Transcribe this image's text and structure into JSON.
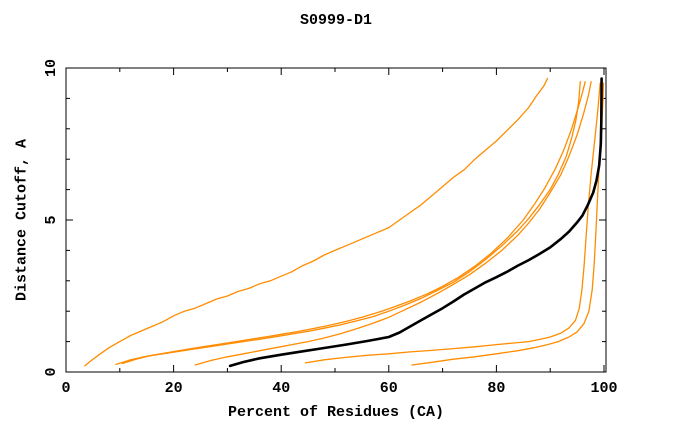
{
  "chart_data": {
    "type": "line",
    "title": "S0999-D1",
    "xlabel": "Percent of Residues (CA)",
    "ylabel": "Distance Cutoff, A",
    "xlim": [
      0,
      100
    ],
    "ylim": [
      0,
      10
    ],
    "grid": false,
    "legend_position": "none",
    "axis_color": "#000000",
    "model_color": "#ff8c00",
    "reference_color": "#000000",
    "x_major_ticks": [
      0,
      20,
      40,
      60,
      80,
      100
    ],
    "x_minor_ticks": [
      10,
      30,
      50,
      70,
      90
    ],
    "x_tick_labels": [
      "0",
      "20",
      "40",
      "60",
      "80",
      "100"
    ],
    "y_major_ticks": [
      0,
      5,
      10
    ],
    "y_minor_ticks": [
      1,
      2,
      3,
      4,
      6,
      7,
      8,
      9
    ],
    "y_tick_labels": [
      "0",
      "5",
      "10"
    ],
    "series": [
      {
        "name": "model-1",
        "color": "#ff8c00",
        "width": 1.3,
        "points": [
          [
            3.5,
            0.2
          ],
          [
            4.5,
            0.35
          ],
          [
            6,
            0.55
          ],
          [
            8,
            0.8
          ],
          [
            10,
            1.0
          ],
          [
            12,
            1.2
          ],
          [
            14,
            1.35
          ],
          [
            16,
            1.5
          ],
          [
            18,
            1.65
          ],
          [
            20,
            1.85
          ],
          [
            22,
            2.0
          ],
          [
            24,
            2.1
          ],
          [
            26,
            2.25
          ],
          [
            28,
            2.4
          ],
          [
            30,
            2.5
          ],
          [
            32,
            2.65
          ],
          [
            34,
            2.75
          ],
          [
            36,
            2.9
          ],
          [
            38,
            3.0
          ],
          [
            40,
            3.15
          ],
          [
            42,
            3.3
          ],
          [
            44,
            3.5
          ],
          [
            46,
            3.65
          ],
          [
            48,
            3.85
          ],
          [
            50,
            4.0
          ],
          [
            52,
            4.15
          ],
          [
            54,
            4.3
          ],
          [
            56,
            4.45
          ],
          [
            58,
            4.6
          ],
          [
            60,
            4.75
          ],
          [
            62,
            5.0
          ],
          [
            64,
            5.25
          ],
          [
            66,
            5.5
          ],
          [
            68,
            5.8
          ],
          [
            70,
            6.1
          ],
          [
            72,
            6.4
          ],
          [
            74,
            6.65
          ],
          [
            76,
            7.0
          ],
          [
            78,
            7.3
          ],
          [
            80,
            7.6
          ],
          [
            82,
            7.95
          ],
          [
            84,
            8.3
          ],
          [
            86,
            8.7
          ],
          [
            87.5,
            9.1
          ],
          [
            88.8,
            9.4
          ],
          [
            89.5,
            9.65
          ]
        ]
      },
      {
        "name": "model-2",
        "color": "#ff8c00",
        "width": 1.3,
        "points": [
          [
            9.3,
            0.25
          ],
          [
            12,
            0.4
          ],
          [
            15,
            0.52
          ],
          [
            18,
            0.6
          ],
          [
            21,
            0.68
          ],
          [
            24,
            0.76
          ],
          [
            27,
            0.84
          ],
          [
            30,
            0.92
          ],
          [
            33,
            1.0
          ],
          [
            36,
            1.08
          ],
          [
            39,
            1.16
          ],
          [
            42,
            1.25
          ],
          [
            45,
            1.34
          ],
          [
            48,
            1.44
          ],
          [
            51,
            1.55
          ],
          [
            54,
            1.68
          ],
          [
            57,
            1.82
          ],
          [
            60,
            2.0
          ],
          [
            63,
            2.2
          ],
          [
            66,
            2.42
          ],
          [
            69,
            2.68
          ],
          [
            72,
            2.95
          ],
          [
            75,
            3.3
          ],
          [
            78,
            3.7
          ],
          [
            81,
            4.15
          ],
          [
            84,
            4.65
          ],
          [
            86,
            5.05
          ],
          [
            88,
            5.5
          ],
          [
            90,
            6.0
          ],
          [
            91.5,
            6.5
          ],
          [
            93,
            7.1
          ],
          [
            94,
            7.7
          ],
          [
            94.8,
            8.3
          ],
          [
            95.3,
            8.9
          ],
          [
            95.6,
            9.55
          ]
        ]
      },
      {
        "name": "model-3",
        "color": "#ff8c00",
        "width": 1.3,
        "points": [
          [
            10.5,
            0.28
          ],
          [
            13,
            0.42
          ],
          [
            16,
            0.55
          ],
          [
            19,
            0.64
          ],
          [
            22,
            0.73
          ],
          [
            25,
            0.82
          ],
          [
            28,
            0.9
          ],
          [
            31,
            0.98
          ],
          [
            34,
            1.07
          ],
          [
            37,
            1.15
          ],
          [
            40,
            1.24
          ],
          [
            43,
            1.33
          ],
          [
            46,
            1.43
          ],
          [
            49,
            1.54
          ],
          [
            52,
            1.66
          ],
          [
            55,
            1.8
          ],
          [
            58,
            1.96
          ],
          [
            61,
            2.14
          ],
          [
            64,
            2.34
          ],
          [
            67,
            2.56
          ],
          [
            70,
            2.82
          ],
          [
            73,
            3.12
          ],
          [
            76,
            3.48
          ],
          [
            79,
            3.9
          ],
          [
            82,
            4.4
          ],
          [
            85,
            5.0
          ],
          [
            87,
            5.5
          ],
          [
            89,
            6.05
          ],
          [
            91,
            6.7
          ],
          [
            92.5,
            7.3
          ],
          [
            94,
            8.0
          ],
          [
            95.2,
            8.7
          ],
          [
            96,
            9.2
          ],
          [
            96.5,
            9.55
          ]
        ]
      },
      {
        "name": "model-4",
        "color": "#ff8c00",
        "width": 1.3,
        "points": [
          [
            24,
            0.23
          ],
          [
            27,
            0.38
          ],
          [
            30,
            0.5
          ],
          [
            33,
            0.6
          ],
          [
            36,
            0.7
          ],
          [
            39,
            0.8
          ],
          [
            42,
            0.9
          ],
          [
            45,
            1.0
          ],
          [
            48,
            1.12
          ],
          [
            51,
            1.26
          ],
          [
            54,
            1.42
          ],
          [
            57,
            1.6
          ],
          [
            60,
            1.8
          ],
          [
            63,
            2.05
          ],
          [
            66,
            2.3
          ],
          [
            69,
            2.58
          ],
          [
            72,
            2.88
          ],
          [
            75,
            3.2
          ],
          [
            78,
            3.58
          ],
          [
            81,
            4.0
          ],
          [
            84,
            4.5
          ],
          [
            86,
            4.9
          ],
          [
            88,
            5.35
          ],
          [
            90,
            5.9
          ],
          [
            92,
            6.5
          ],
          [
            93.5,
            7.1
          ],
          [
            95,
            7.8
          ],
          [
            96.2,
            8.5
          ],
          [
            97.1,
            9.1
          ],
          [
            97.6,
            9.55
          ]
        ]
      },
      {
        "name": "model-5",
        "color": "#ff8c00",
        "width": 1.3,
        "points": [
          [
            44.5,
            0.3
          ],
          [
            48,
            0.4
          ],
          [
            52,
            0.48
          ],
          [
            56,
            0.55
          ],
          [
            60,
            0.6
          ],
          [
            64,
            0.66
          ],
          [
            68,
            0.71
          ],
          [
            72,
            0.77
          ],
          [
            76,
            0.83
          ],
          [
            80,
            0.9
          ],
          [
            83,
            0.95
          ],
          [
            86,
            1.0
          ],
          [
            88,
            1.07
          ],
          [
            90,
            1.15
          ],
          [
            92,
            1.28
          ],
          [
            93.5,
            1.45
          ],
          [
            94.7,
            1.7
          ],
          [
            95.4,
            2.1
          ],
          [
            95.9,
            2.7
          ],
          [
            96.3,
            3.5
          ],
          [
            96.7,
            4.5
          ],
          [
            97.1,
            5.5
          ],
          [
            97.6,
            6.5
          ],
          [
            98.2,
            7.5
          ],
          [
            98.8,
            8.5
          ],
          [
            99.3,
            9.5
          ]
        ]
      },
      {
        "name": "model-6",
        "color": "#ff8c00",
        "width": 1.3,
        "points": [
          [
            64.3,
            0.23
          ],
          [
            68,
            0.32
          ],
          [
            72,
            0.42
          ],
          [
            76,
            0.5
          ],
          [
            80,
            0.6
          ],
          [
            84,
            0.7
          ],
          [
            87,
            0.8
          ],
          [
            89.5,
            0.9
          ],
          [
            91.5,
            1.0
          ],
          [
            93.5,
            1.15
          ],
          [
            95,
            1.32
          ],
          [
            96.3,
            1.6
          ],
          [
            97.2,
            2.0
          ],
          [
            97.8,
            2.7
          ],
          [
            98.2,
            3.6
          ],
          [
            98.5,
            4.6
          ],
          [
            98.8,
            5.7
          ],
          [
            99.1,
            6.8
          ],
          [
            99.5,
            7.9
          ],
          [
            99.8,
            8.9
          ],
          [
            99.9,
            9.5
          ]
        ]
      },
      {
        "name": "reference",
        "color": "#000000",
        "width": 2.6,
        "points": [
          [
            30.5,
            0.2
          ],
          [
            33,
            0.33
          ],
          [
            36,
            0.45
          ],
          [
            40,
            0.57
          ],
          [
            44,
            0.68
          ],
          [
            48,
            0.79
          ],
          [
            52,
            0.9
          ],
          [
            56,
            1.02
          ],
          [
            60,
            1.15
          ],
          [
            62,
            1.3
          ],
          [
            64,
            1.5
          ],
          [
            66,
            1.7
          ],
          [
            68,
            1.9
          ],
          [
            70,
            2.1
          ],
          [
            72,
            2.32
          ],
          [
            74,
            2.55
          ],
          [
            76,
            2.75
          ],
          [
            78,
            2.95
          ],
          [
            80,
            3.12
          ],
          [
            82,
            3.3
          ],
          [
            84,
            3.5
          ],
          [
            86,
            3.68
          ],
          [
            88,
            3.88
          ],
          [
            90,
            4.1
          ],
          [
            92,
            4.38
          ],
          [
            93.5,
            4.62
          ],
          [
            95,
            4.92
          ],
          [
            96,
            5.15
          ],
          [
            97,
            5.5
          ],
          [
            98,
            5.9
          ],
          [
            98.6,
            6.3
          ],
          [
            99.1,
            6.8
          ],
          [
            99.4,
            7.5
          ],
          [
            99.5,
            8.2
          ],
          [
            99.55,
            9.65
          ]
        ]
      }
    ]
  }
}
